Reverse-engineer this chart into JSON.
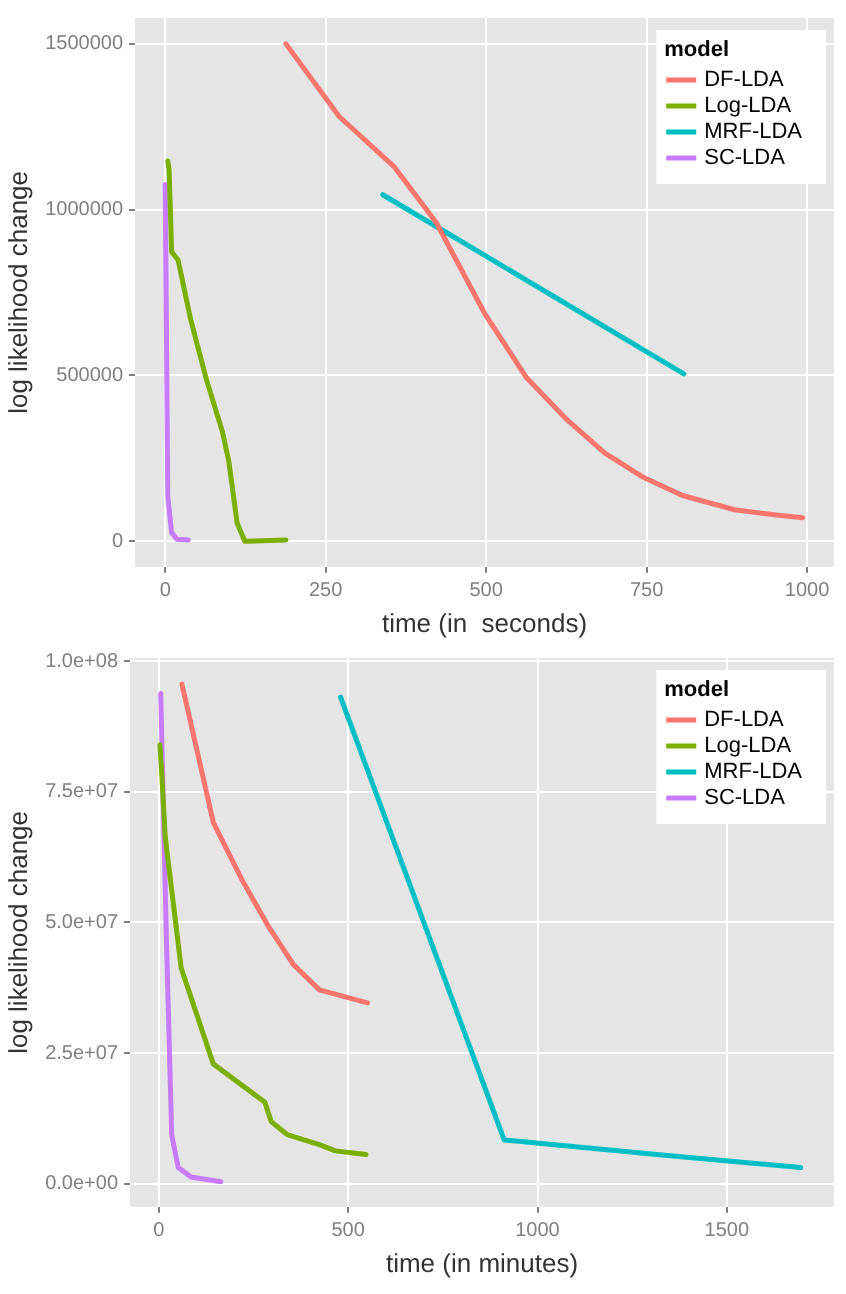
{
  "chart_data": [
    {
      "type": "line",
      "xlabel": "time (in  seconds)",
      "ylabel": "log likelihood change",
      "legend_title": "model",
      "legend": "top right",
      "grid": true,
      "marker": "none",
      "line_style": "solid",
      "xlim": [
        -47,
        1042
      ],
      "xticks": [
        0,
        250,
        500,
        750,
        1000
      ],
      "ylim": [
        -77000,
        1578000
      ],
      "yticks": [
        0,
        500000,
        1000000,
        1500000
      ],
      "series": [
        {
          "name": "DF-LDA",
          "color": "#f8766d",
          "x": [
            188,
            271,
            357,
            422,
            498,
            563,
            624,
            685,
            745,
            806,
            887,
            952,
            993
          ],
          "values": [
            1500000,
            1281000,
            1129000,
            962000,
            686000,
            493000,
            370000,
            266000,
            193000,
            138000,
            95000,
            79000,
            71000
          ]
        },
        {
          "name": "Log-LDA",
          "color": "#7cae00",
          "x": [
            4,
            6,
            10,
            20,
            40,
            64,
            89,
            99,
            112,
            124,
            188
          ],
          "values": [
            1147000,
            1120000,
            873000,
            848000,
            666000,
            489000,
            331000,
            242000,
            55000,
            0,
            4000
          ]
        },
        {
          "name": "MRF-LDA",
          "color": "#00bfc4",
          "x": [
            339,
            808
          ],
          "values": [
            1045000,
            505000
          ]
        },
        {
          "name": "SC-LDA",
          "color": "#c77cff",
          "x": [
            0,
            4,
            10,
            18,
            36
          ],
          "values": [
            1076000,
            134000,
            26000,
            6000,
            4000
          ]
        }
      ]
    },
    {
      "type": "line",
      "xlabel": "time (in minutes)",
      "ylabel": "log likelihood change",
      "legend_title": "model",
      "legend": "top right",
      "grid": true,
      "marker": "none",
      "line_style": "solid",
      "xlim": [
        -76,
        1783
      ],
      "xticks": [
        0,
        500,
        1000,
        1500
      ],
      "ylim": [
        -4400000,
        100600000
      ],
      "yticks": [
        {
          "value": 0,
          "label": "0.0e+00"
        },
        {
          "value": 25000000,
          "label": "2.5e+07"
        },
        {
          "value": 50000000,
          "label": "5.0e+07"
        },
        {
          "value": 75000000,
          "label": "7.5e+07"
        },
        {
          "value": 100000000,
          "label": "1.0e+08"
        }
      ],
      "series": [
        {
          "name": "DF-LDA",
          "color": "#f8766d",
          "x": [
            61,
            144,
            220,
            288,
            356,
            424,
            551
          ],
          "values": [
            95600000,
            69100000,
            58100000,
            49400000,
            41900000,
            37100000,
            34600000
          ]
        },
        {
          "name": "Log-LDA",
          "color": "#7cae00",
          "x": [
            3,
            8,
            17,
            59,
            144,
            280,
            297,
            339,
            424,
            466,
            547
          ],
          "values": [
            84000000,
            78000000,
            66300000,
            41300000,
            22900000,
            15600000,
            11900000,
            9400000,
            7500000,
            6300000,
            5600000
          ]
        },
        {
          "name": "MRF-LDA",
          "color": "#00bfc4",
          "x": [
            480,
            912,
            1314,
            1695
          ],
          "values": [
            93100000,
            8400000,
            5600000,
            3100000
          ]
        },
        {
          "name": "SC-LDA",
          "color": "#c77cff",
          "x": [
            5,
            20,
            34,
            51,
            85,
            164
          ],
          "values": [
            93800000,
            46900000,
            9400000,
            3100000,
            1300000,
            400000
          ]
        }
      ]
    }
  ]
}
